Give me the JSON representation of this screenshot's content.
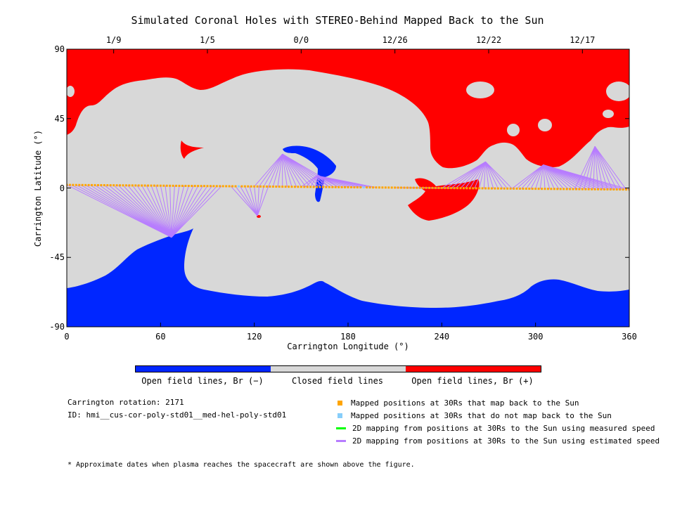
{
  "chart_data": {
    "type": "heatmap",
    "title": "Simulated Coronal Holes with STEREO-Behind Mapped Back to the Sun",
    "xlabel": "Carrington Longitude (°)",
    "ylabel": "Carrington Latitude (°)",
    "xlim": [
      0,
      360
    ],
    "ylim": [
      -90,
      90
    ],
    "x_ticks": [
      "0",
      "60",
      "120",
      "180",
      "240",
      "300",
      "360"
    ],
    "y_ticks": [
      "90",
      "45",
      "0",
      "-45",
      "-90"
    ],
    "top_ticks": [
      {
        "lon": 30,
        "label": "1/9"
      },
      {
        "lon": 90,
        "label": "1/5"
      },
      {
        "lon": 150,
        "label": "0/0"
      },
      {
        "lon": 210,
        "label": "12/26"
      },
      {
        "lon": 270,
        "label": "12/22"
      },
      {
        "lon": 330,
        "label": "12/17"
      }
    ],
    "colorbar": [
      {
        "label": "Open field lines, Br (−)",
        "color": "#0026ff"
      },
      {
        "label": "Closed field lines",
        "color": "#d8d8d8"
      },
      {
        "label": "Open field lines, Br (+)",
        "color": "#ff0000"
      }
    ],
    "mapped_track": {
      "lon_start": 0,
      "lat_start": 2,
      "lon_end": 360,
      "lat_end": -1,
      "non_mapping_lon": [
        110,
        190
      ]
    },
    "mapping_lines": [
      {
        "from_lon": [
          0,
          100
        ],
        "to": [
          67,
          -32
        ]
      },
      {
        "from_lon": [
          105,
          130
        ],
        "to": [
          122,
          -18
        ]
      },
      {
        "from_lon": [
          120,
          175
        ],
        "to": [
          138,
          22
        ]
      },
      {
        "from_lon": [
          150,
          200
        ],
        "to": [
          160,
          8
        ]
      },
      {
        "from_lon": [
          210,
          250
        ],
        "to": [
          232,
          0
        ]
      },
      {
        "from_lon": [
          240,
          285
        ],
        "to": [
          268,
          17
        ]
      },
      {
        "from_lon": [
          285,
          360
        ],
        "to": [
          305,
          15
        ]
      },
      {
        "from_lon": [
          325,
          360
        ],
        "to": [
          338,
          27
        ]
      }
    ]
  },
  "info": {
    "rotation": "Carrington rotation: 2171",
    "id": "ID: hmi__cus-cor-poly-std01__med-hel-poly-std01"
  },
  "legend": [
    {
      "label": "Mapped positions at 30Rs that map back to the Sun",
      "color": "#ffa500",
      "kind": "square"
    },
    {
      "label": "Mapped positions at 30Rs that do not map back to the Sun",
      "color": "#87cefa",
      "kind": "square"
    },
    {
      "label": "2D mapping from positions at 30Rs to the Sun using measured speed",
      "color": "#00ff00",
      "kind": "line"
    },
    {
      "label": "2D mapping from positions at 30Rs to the Sun using estimated speed",
      "color": "#b77cff",
      "kind": "line"
    }
  ],
  "footnote": "* Approximate dates when plasma reaches the spacecraft are shown above the figure."
}
